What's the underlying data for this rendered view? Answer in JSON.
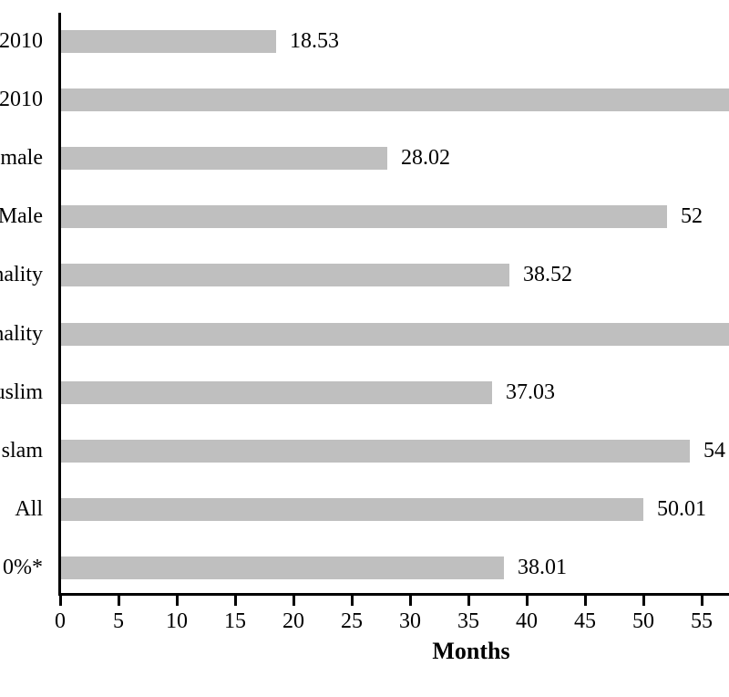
{
  "chart_data": {
    "type": "bar",
    "orientation": "horizontal",
    "title": "",
    "xlabel": "Months",
    "ylabel": "",
    "xlim": [
      0,
      57.3
    ],
    "x_ticks": [
      0,
      5,
      10,
      15,
      20,
      25,
      30,
      35,
      40,
      45,
      50,
      55
    ],
    "grid": false,
    "legend": "none",
    "bar_color": "#bfbfbf",
    "axis_color": "#000000",
    "note": "Left category labels and two bars are clipped by the image edges; clipped bars extend past the right border (beyond ~57.3 months visible).",
    "rows": [
      {
        "category_fragment": "2010",
        "value": 18.53,
        "value_label": "18.53",
        "clipped": false
      },
      {
        "category_fragment": "2010",
        "value": null,
        "value_label": "",
        "clipped": true,
        "visible_extent": 57.3
      },
      {
        "category_fragment": "male",
        "value": 28.02,
        "value_label": "28.02",
        "clipped": false
      },
      {
        "category_fragment": "Male",
        "value": 52,
        "value_label": "52",
        "clipped": false
      },
      {
        "category_fragment": "nality",
        "value": 38.52,
        "value_label": "38.52",
        "clipped": false
      },
      {
        "category_fragment": "nality",
        "value": null,
        "value_label": "",
        "clipped": true,
        "visible_extent": 57.3
      },
      {
        "category_fragment": "uslim",
        "value": 37.03,
        "value_label": "37.03",
        "clipped": false
      },
      {
        "category_fragment": "slam",
        "value": 54,
        "value_label": "54",
        "clipped": false
      },
      {
        "category_fragment": "All",
        "value": 50.01,
        "value_label": "50.01",
        "clipped": false
      },
      {
        "category_fragment": "0%*",
        "value": 38.01,
        "value_label": "38.01",
        "clipped": false
      }
    ]
  }
}
